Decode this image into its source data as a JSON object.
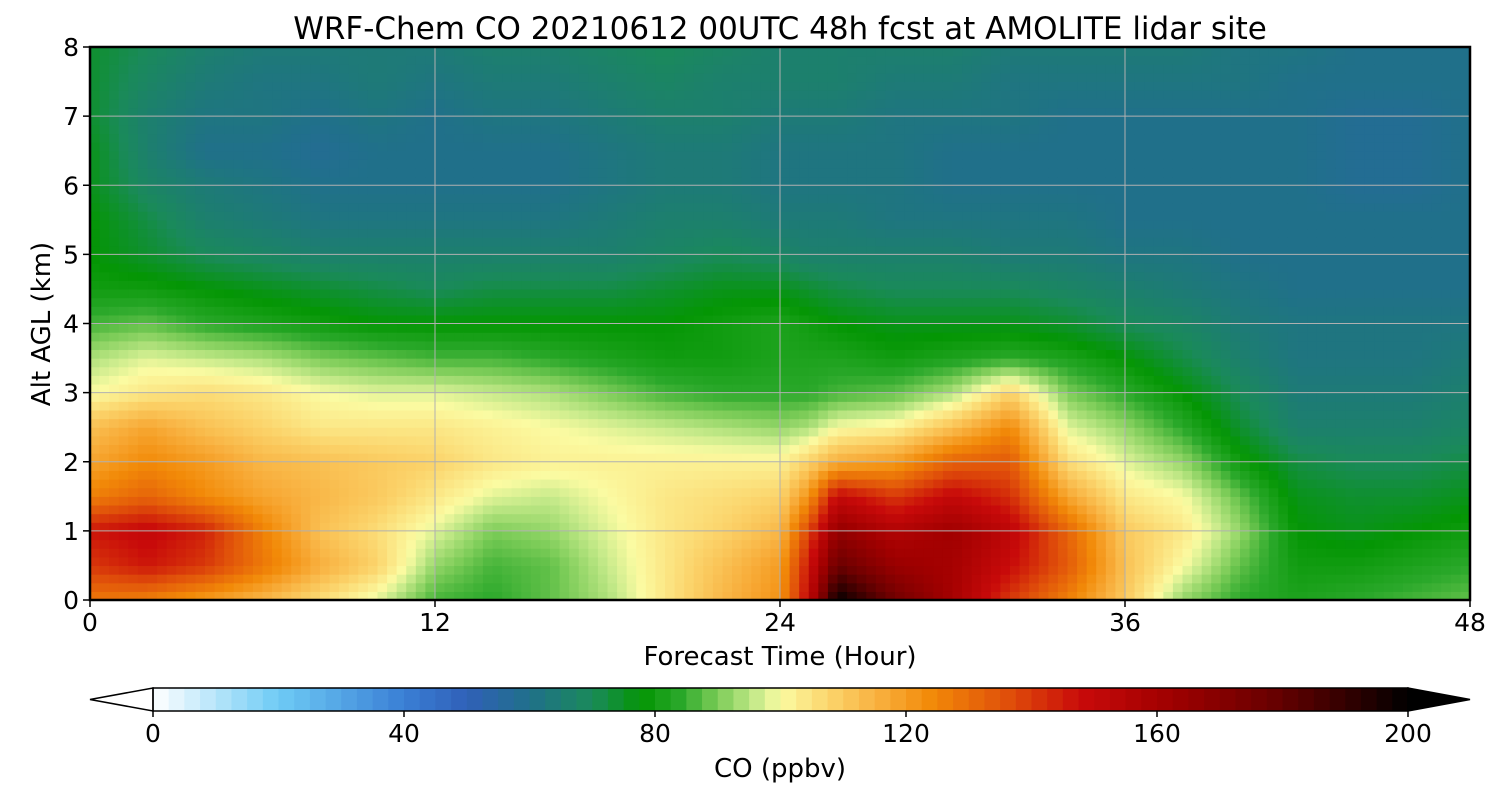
{
  "chart_data": {
    "type": "heatmap",
    "title": "WRF-Chem CO  20210612 00UTC 48h fcst at AMOLITE lidar site",
    "xlabel": "Forecast Time (Hour)",
    "ylabel": "Alt AGL (km)",
    "xlim": [
      0,
      48
    ],
    "ylim": [
      0,
      8
    ],
    "xticks": [
      0,
      12,
      24,
      36,
      48
    ],
    "yticks": [
      0,
      1,
      2,
      3,
      4,
      5,
      6,
      7,
      8
    ],
    "grid": true,
    "colorbar": {
      "label": "CO  (ppbv)",
      "orientation": "horizontal",
      "placement": "bottom",
      "range": [
        0,
        200
      ],
      "ticks": [
        0,
        40,
        80,
        120,
        160,
        200
      ],
      "extend": "both",
      "stops": [
        {
          "value": 0,
          "color": "#ffffff"
        },
        {
          "value": 20,
          "color": "#6ecbf5"
        },
        {
          "value": 40,
          "color": "#3a7fd5"
        },
        {
          "value": 50,
          "color": "#3060b8"
        },
        {
          "value": 60,
          "color": "#20708a"
        },
        {
          "value": 70,
          "color": "#1a8a5a"
        },
        {
          "value": 78,
          "color": "#049604"
        },
        {
          "value": 84,
          "color": "#2aa82a"
        },
        {
          "value": 90,
          "color": "#7ccc58"
        },
        {
          "value": 96,
          "color": "#c6ea8a"
        },
        {
          "value": 100,
          "color": "#fbfba2"
        },
        {
          "value": 108,
          "color": "#fbd36a"
        },
        {
          "value": 116,
          "color": "#f8ae3c"
        },
        {
          "value": 124,
          "color": "#f28a08"
        },
        {
          "value": 136,
          "color": "#e0500a"
        },
        {
          "value": 148,
          "color": "#c80a0a"
        },
        {
          "value": 162,
          "color": "#a00000"
        },
        {
          "value": 178,
          "color": "#6a0000"
        },
        {
          "value": 192,
          "color": "#2a0000"
        },
        {
          "value": 200,
          "color": "#000000"
        }
      ]
    },
    "series": [
      {
        "x": 0,
        "y": [
          128,
          140,
          146,
          126,
          118,
          112,
          100,
          94,
          86,
          80,
          78,
          78,
          76,
          76,
          74,
          74,
          74
        ]
      },
      {
        "x": 2,
        "y": [
          126,
          146,
          150,
          132,
          124,
          118,
          104,
          98,
          88,
          80,
          74,
          72,
          68,
          66,
          66,
          68,
          70
        ]
      },
      {
        "x": 4,
        "y": [
          120,
          140,
          144,
          124,
          120,
          112,
          106,
          96,
          84,
          78,
          70,
          66,
          64,
          60,
          62,
          64,
          66
        ]
      },
      {
        "x": 6,
        "y": [
          114,
          128,
          126,
          118,
          114,
          108,
          104,
          94,
          82,
          76,
          68,
          64,
          62,
          60,
          62,
          62,
          64
        ]
      },
      {
        "x": 8,
        "y": [
          106,
          116,
          112,
          114,
          112,
          104,
          100,
          90,
          80,
          74,
          66,
          62,
          60,
          58,
          60,
          62,
          64
        ]
      },
      {
        "x": 10,
        "y": [
          98,
          108,
          106,
          110,
          110,
          104,
          98,
          88,
          78,
          72,
          66,
          62,
          60,
          60,
          62,
          64,
          64
        ]
      },
      {
        "x": 12,
        "y": [
          86,
          92,
          98,
          104,
          108,
          104,
          98,
          86,
          78,
          70,
          66,
          62,
          60,
          60,
          60,
          62,
          64
        ]
      },
      {
        "x": 14,
        "y": [
          84,
          86,
          90,
          98,
          104,
          102,
          96,
          86,
          78,
          72,
          66,
          62,
          60,
          60,
          62,
          64,
          66
        ]
      },
      {
        "x": 16,
        "y": [
          88,
          88,
          92,
          96,
          102,
          100,
          94,
          84,
          78,
          72,
          66,
          62,
          60,
          60,
          62,
          64,
          66
        ]
      },
      {
        "x": 18,
        "y": [
          94,
          96,
          98,
          100,
          102,
          98,
          90,
          82,
          78,
          72,
          66,
          64,
          62,
          62,
          64,
          66,
          68
        ]
      },
      {
        "x": 20,
        "y": [
          104,
          104,
          104,
          104,
          102,
          96,
          86,
          80,
          78,
          74,
          68,
          66,
          64,
          64,
          66,
          68,
          70
        ]
      },
      {
        "x": 22,
        "y": [
          114,
          112,
          108,
          106,
          102,
          94,
          84,
          80,
          80,
          76,
          70,
          66,
          64,
          64,
          66,
          66,
          68
        ]
      },
      {
        "x": 24,
        "y": [
          122,
          120,
          114,
          108,
          102,
          92,
          84,
          82,
          82,
          76,
          68,
          64,
          62,
          62,
          64,
          66,
          66
        ]
      },
      {
        "x": 25,
        "y": [
          150,
          146,
          138,
          122,
          108,
          94,
          84,
          82,
          80,
          74,
          66,
          64,
          62,
          62,
          64,
          66,
          66
        ]
      },
      {
        "x": 26,
        "y": [
          200,
          178,
          166,
          150,
          116,
          100,
          86,
          82,
          78,
          72,
          66,
          64,
          62,
          62,
          64,
          66,
          66
        ]
      },
      {
        "x": 28,
        "y": [
          176,
          164,
          156,
          140,
          120,
          102,
          88,
          80,
          76,
          70,
          66,
          62,
          62,
          62,
          62,
          64,
          66
        ]
      },
      {
        "x": 30,
        "y": [
          160,
          160,
          162,
          150,
          132,
          112,
          94,
          82,
          76,
          70,
          66,
          62,
          60,
          60,
          62,
          64,
          66
        ]
      },
      {
        "x": 32,
        "y": [
          140,
          148,
          152,
          142,
          134,
          124,
          108,
          84,
          76,
          70,
          64,
          62,
          60,
          60,
          62,
          62,
          64
        ]
      },
      {
        "x": 34,
        "y": [
          126,
          134,
          132,
          118,
          106,
          98,
          90,
          82,
          74,
          68,
          64,
          62,
          60,
          60,
          60,
          62,
          64
        ]
      },
      {
        "x": 36,
        "y": [
          110,
          112,
          110,
          104,
          98,
          92,
          84,
          78,
          70,
          66,
          62,
          60,
          60,
          60,
          60,
          62,
          64
        ]
      },
      {
        "x": 38,
        "y": [
          92,
          100,
          104,
          100,
          92,
          84,
          78,
          72,
          68,
          64,
          62,
          60,
          60,
          60,
          60,
          62,
          64
        ]
      },
      {
        "x": 40,
        "y": [
          84,
          88,
          92,
          88,
          80,
          74,
          70,
          66,
          64,
          62,
          60,
          60,
          60,
          60,
          60,
          62,
          62
        ]
      },
      {
        "x": 42,
        "y": [
          82,
          80,
          78,
          76,
          72,
          66,
          64,
          62,
          62,
          60,
          60,
          60,
          60,
          60,
          60,
          60,
          62
        ]
      },
      {
        "x": 44,
        "y": [
          84,
          80,
          76,
          74,
          70,
          66,
          64,
          62,
          62,
          60,
          60,
          60,
          58,
          58,
          58,
          60,
          60
        ]
      },
      {
        "x": 46,
        "y": [
          86,
          82,
          78,
          74,
          70,
          66,
          64,
          62,
          62,
          60,
          60,
          60,
          58,
          58,
          58,
          60,
          60
        ]
      },
      {
        "x": 48,
        "y": [
          88,
          84,
          80,
          76,
          72,
          68,
          66,
          64,
          62,
          60,
          60,
          60,
          60,
          60,
          60,
          60,
          60
        ]
      }
    ],
    "altitudes": [
      0,
      0.5,
      1,
      1.5,
      2,
      2.5,
      3,
      3.5,
      4,
      4.5,
      5,
      5.5,
      6,
      6.5,
      7,
      7.5,
      8
    ]
  }
}
